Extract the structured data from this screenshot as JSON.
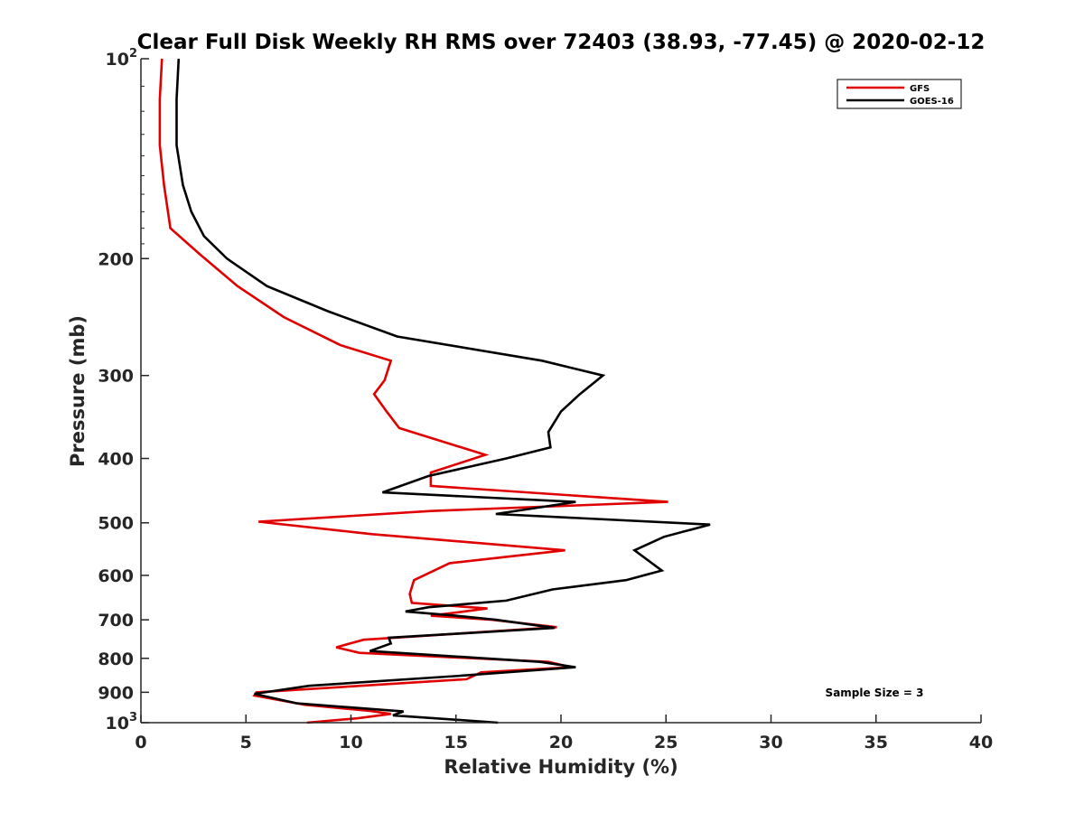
{
  "chart_data": {
    "type": "line",
    "title": "Clear Full Disk Weekly RH RMS over 72403 (38.93, -77.45) @ 2020-02-12",
    "xlabel": "Relative Humidity (%)",
    "ylabel": "Pressure (mb)",
    "xlim": [
      0,
      40
    ],
    "ylim": [
      100,
      1000
    ],
    "y_scale": "log",
    "y_reversed": true,
    "x_ticks": [
      "0",
      "5",
      "10",
      "15",
      "20",
      "25",
      "30",
      "35",
      "40"
    ],
    "y_ticks": [
      {
        "value": 100,
        "base": "10",
        "exp": "2"
      },
      {
        "value": 200,
        "label": "200"
      },
      {
        "value": 300,
        "label": "300"
      },
      {
        "value": 400,
        "label": "400"
      },
      {
        "value": 500,
        "label": "500"
      },
      {
        "value": 600,
        "label": "600"
      },
      {
        "value": 700,
        "label": "700"
      },
      {
        "value": 800,
        "label": "800"
      },
      {
        "value": 900,
        "label": "900"
      },
      {
        "value": 1000,
        "base": "10",
        "exp": "3"
      }
    ],
    "legend_position": "top-right",
    "grid": false,
    "annotation": "Sample Size = 3",
    "series": [
      {
        "name": "GFS",
        "color": "#e00000",
        "points": [
          [
            1.0,
            100
          ],
          [
            0.9,
            115
          ],
          [
            0.9,
            135
          ],
          [
            1.1,
            155
          ],
          [
            1.4,
            180
          ],
          [
            2.8,
            197
          ],
          [
            4.6,
            220
          ],
          [
            6.8,
            245
          ],
          [
            9.5,
            270
          ],
          [
            11.9,
            285
          ],
          [
            11.6,
            305
          ],
          [
            11.1,
            320
          ],
          [
            11.7,
            340
          ],
          [
            12.3,
            360
          ],
          [
            16.4,
            395
          ],
          [
            13.8,
            420
          ],
          [
            13.8,
            440
          ],
          [
            25.1,
            465
          ],
          [
            13.8,
            480
          ],
          [
            5.6,
            498
          ],
          [
            11.0,
            520
          ],
          [
            20.2,
            550
          ],
          [
            14.7,
            575
          ],
          [
            13.0,
            610
          ],
          [
            12.8,
            640
          ],
          [
            12.9,
            660
          ],
          [
            16.5,
            673
          ],
          [
            13.8,
            690
          ],
          [
            16.7,
            700
          ],
          [
            19.8,
            718
          ],
          [
            10.6,
            750
          ],
          [
            9.3,
            770
          ],
          [
            10.4,
            785
          ],
          [
            19.4,
            810
          ],
          [
            20.5,
            825
          ],
          [
            16.2,
            840
          ],
          [
            15.5,
            860
          ],
          [
            5.5,
            900
          ],
          [
            5.4,
            910
          ],
          [
            7.8,
            940
          ],
          [
            10.9,
            960
          ],
          [
            11.9,
            970
          ],
          [
            10.3,
            985
          ],
          [
            7.9,
            1000
          ]
        ]
      },
      {
        "name": "GOES-16",
        "color": "#000000",
        "points": [
          [
            1.8,
            100
          ],
          [
            1.7,
            115
          ],
          [
            1.7,
            135
          ],
          [
            2.0,
            155
          ],
          [
            2.4,
            170
          ],
          [
            3.0,
            185
          ],
          [
            4.1,
            200
          ],
          [
            6.0,
            220
          ],
          [
            8.9,
            240
          ],
          [
            12.2,
            262
          ],
          [
            19.1,
            285
          ],
          [
            22.0,
            300
          ],
          [
            20.9,
            320
          ],
          [
            20.0,
            340
          ],
          [
            19.4,
            365
          ],
          [
            19.5,
            385
          ],
          [
            17.4,
            400
          ],
          [
            13.7,
            425
          ],
          [
            11.5,
            450
          ],
          [
            20.7,
            465
          ],
          [
            16.9,
            485
          ],
          [
            27.1,
            503
          ],
          [
            24.9,
            525
          ],
          [
            23.5,
            550
          ],
          [
            24.8,
            590
          ],
          [
            23.1,
            610
          ],
          [
            19.6,
            630
          ],
          [
            17.4,
            655
          ],
          [
            13.7,
            670
          ],
          [
            12.6,
            680
          ],
          [
            15.0,
            690
          ],
          [
            16.9,
            700
          ],
          [
            19.7,
            720
          ],
          [
            11.8,
            745
          ],
          [
            11.9,
            760
          ],
          [
            10.9,
            780
          ],
          [
            19.0,
            810
          ],
          [
            20.7,
            825
          ],
          [
            15.2,
            850
          ],
          [
            8.0,
            880
          ],
          [
            5.4,
            905
          ],
          [
            7.4,
            935
          ],
          [
            12.5,
            962
          ],
          [
            12.0,
            975
          ],
          [
            17.0,
            1000
          ]
        ]
      }
    ]
  }
}
